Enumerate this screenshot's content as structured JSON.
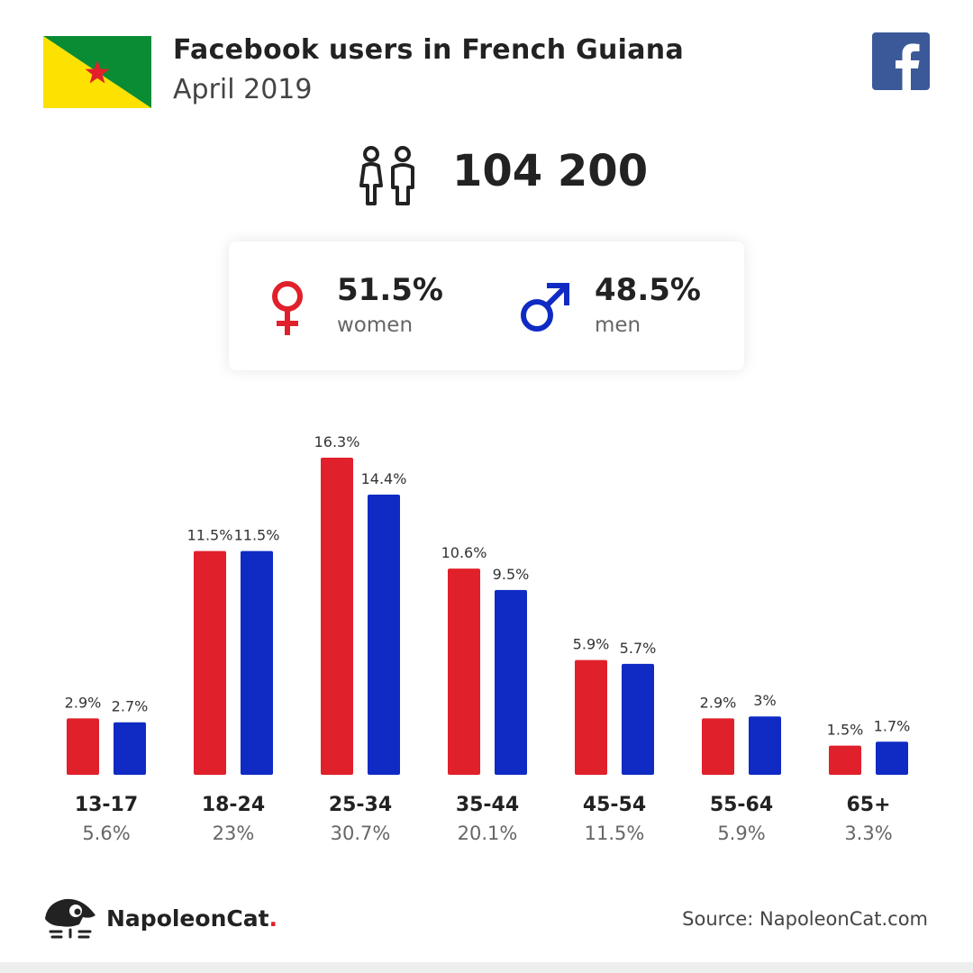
{
  "header": {
    "title": "Facebook users in French Guiana",
    "subtitle": "April 2019"
  },
  "total": {
    "value": "104 200",
    "icon": "users-icon"
  },
  "gender": {
    "women": {
      "pct": "51.5%",
      "label": "women",
      "icon": "female-icon",
      "color": "#e0202a"
    },
    "men": {
      "pct": "48.5%",
      "label": "men",
      "icon": "male-icon",
      "color": "#0f2bc4"
    }
  },
  "chart_data": {
    "type": "bar",
    "categories": [
      "13-17",
      "18-24",
      "25-34",
      "35-44",
      "45-54",
      "55-64",
      "65+"
    ],
    "category_totals": [
      "5.6%",
      "23%",
      "30.7%",
      "20.1%",
      "11.5%",
      "5.9%",
      "3.3%"
    ],
    "series": [
      {
        "values": [
          2.9,
          11.5,
          16.3,
          10.6,
          5.9,
          2.9,
          1.5
        ],
        "labels": [
          "2.9%",
          "11.5%",
          "16.3%",
          "10.6%",
          "5.9%",
          "2.9%",
          "1.5%"
        ],
        "color": "#e0202a"
      },
      {
        "values": [
          2.7,
          11.5,
          14.4,
          9.5,
          5.7,
          3,
          1.7
        ],
        "labels": [
          "2.7%",
          "11.5%",
          "14.4%",
          "9.5%",
          "5.7%",
          "3%",
          "1.7%"
        ],
        "color": "#0f2bc4"
      }
    ],
    "ylim": [
      0,
      16.3
    ],
    "grid": false,
    "legend": "none"
  },
  "footer": {
    "brand": "NapoleonCat",
    "brand_dot": ".",
    "source": "Source: NapoleonCat.com"
  },
  "colors": {
    "flag_green": "#0a8c34",
    "flag_yellow": "#fde100",
    "flag_star": "#e0202a",
    "facebook": "#3b5998"
  }
}
